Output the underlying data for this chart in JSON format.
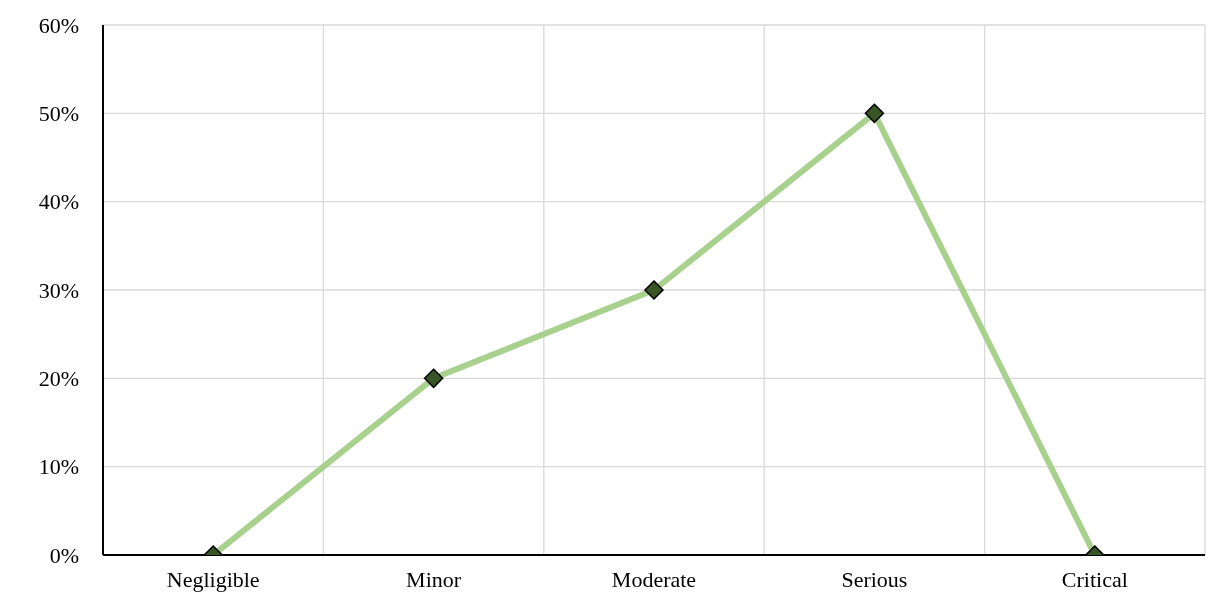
{
  "chart_data": {
    "type": "line",
    "categories": [
      "Negligible",
      "Minor",
      "Moderate",
      "Serious",
      "Critical"
    ],
    "series": [
      {
        "color": "#a9d18e",
        "values": [
          0,
          20,
          30,
          50,
          0
        ]
      }
    ],
    "marker": "diamond",
    "colors": [
      "#375623",
      "#375623",
      "#375623",
      "#375623",
      "#375623"
    ],
    "ylim": [
      0,
      60
    ],
    "yticks": [
      {
        "value": 0,
        "label": "0%"
      },
      {
        "value": 10,
        "label": "10%"
      },
      {
        "value": 20,
        "label": "20%"
      },
      {
        "value": 30,
        "label": "30%"
      },
      {
        "value": 40,
        "label": "40%"
      },
      {
        "value": 50,
        "label": "50%"
      },
      {
        "value": 60,
        "label": "60%"
      }
    ],
    "grid": true,
    "legend": false
  }
}
